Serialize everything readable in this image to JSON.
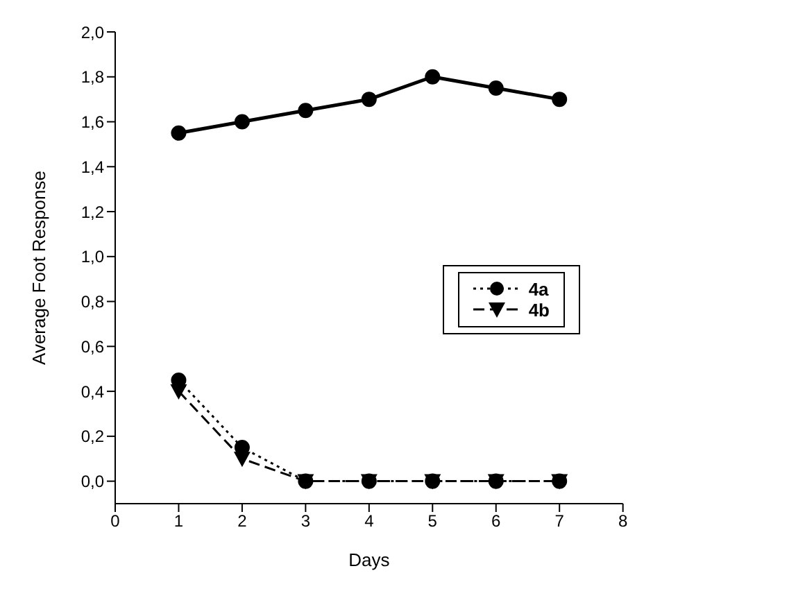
{
  "chart_data": {
    "type": "line",
    "xlabel": "Days",
    "ylabel": "Average Foot Response",
    "x": [
      1,
      2,
      3,
      4,
      5,
      6,
      7
    ],
    "series": [
      {
        "color": "#000000",
        "values": [
          1.55,
          1.6,
          1.65,
          1.7,
          1.8,
          1.75,
          1.7
        ],
        "marker": "circle",
        "line_style": "solid"
      },
      {
        "name": "4a",
        "color": "#000000",
        "values": [
          0.45,
          0.15,
          0,
          0,
          0,
          0,
          0
        ],
        "marker": "circle",
        "line_style": "dotted"
      },
      {
        "name": "4b",
        "color": "#000000",
        "values": [
          0.4,
          0.1,
          0,
          0,
          0,
          0,
          0
        ],
        "marker": "triangle",
        "line_style": "dashed"
      }
    ],
    "xlim": [
      0,
      8
    ],
    "xticks": [
      0,
      1,
      2,
      3,
      4,
      5,
      6,
      7,
      8
    ],
    "ylim": [
      -0.1,
      2
    ],
    "yticks": [
      {
        "value": 0,
        "label": "0,0"
      },
      {
        "value": 0.2,
        "label": "0,2"
      },
      {
        "value": 0.4,
        "label": "0,4"
      },
      {
        "value": 0.6,
        "label": "0,6"
      },
      {
        "value": 0.8,
        "label": "0,8"
      },
      {
        "value": 1,
        "label": "1,0"
      },
      {
        "value": 1.2,
        "label": "1,2"
      },
      {
        "value": 1.4,
        "label": "1,4"
      },
      {
        "value": 1.6,
        "label": "1,6"
      },
      {
        "value": 1.8,
        "label": "1,8"
      },
      {
        "value": 2,
        "label": "2,0"
      }
    ],
    "grid": false,
    "legend": "right"
  }
}
